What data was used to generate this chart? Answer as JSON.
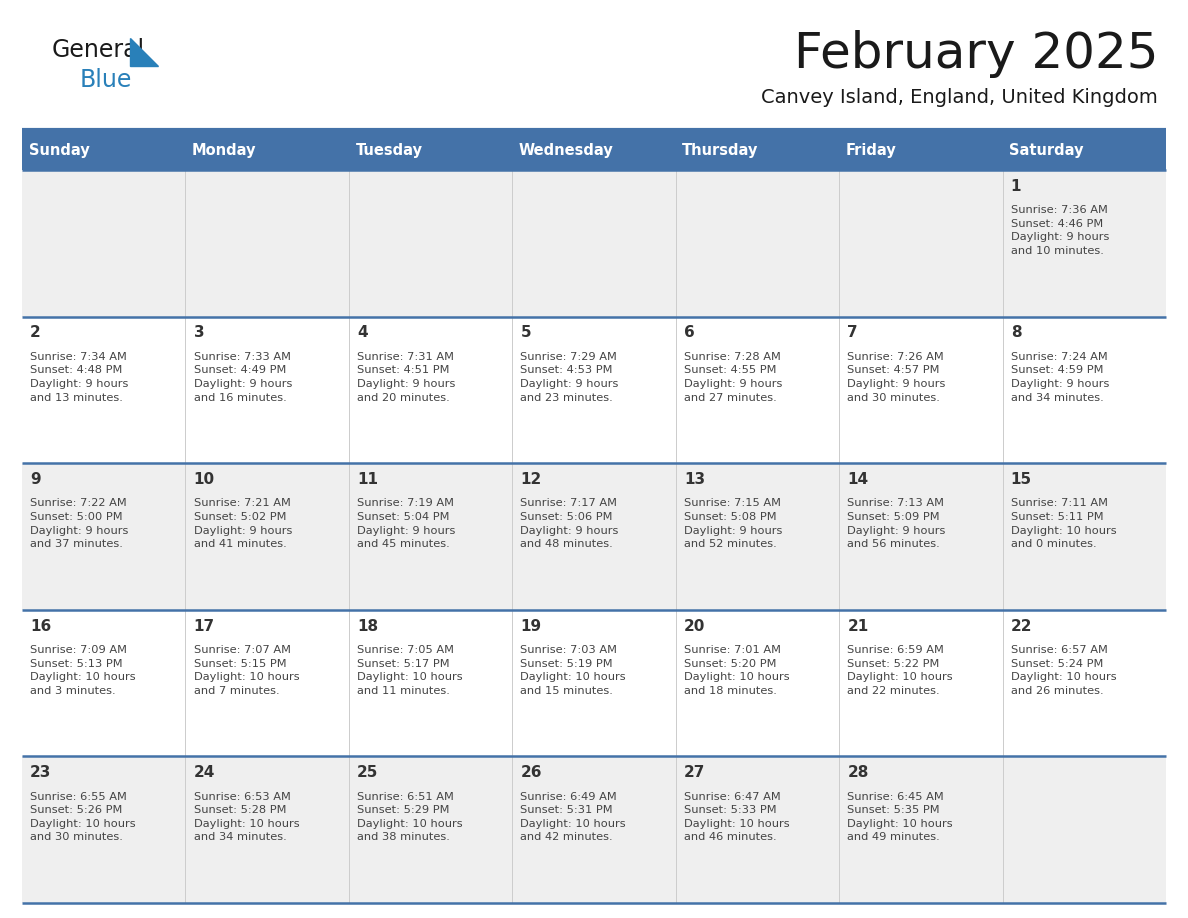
{
  "title": "February 2025",
  "subtitle": "Canvey Island, England, United Kingdom",
  "days_of_week": [
    "Sunday",
    "Monday",
    "Tuesday",
    "Wednesday",
    "Thursday",
    "Friday",
    "Saturday"
  ],
  "header_bg": "#4472a8",
  "header_text": "#ffffff",
  "cell_bg_odd": "#efefef",
  "cell_bg_even": "#ffffff",
  "divider_color": "#4472a8",
  "text_color": "#333333",
  "day_number_color": "#333333",
  "info_text_color": "#444444",
  "calendar_data": [
    [
      null,
      null,
      null,
      null,
      null,
      null,
      {
        "day": 1,
        "sunrise": "7:36 AM",
        "sunset": "4:46 PM",
        "daylight": "9 hours and 10 minutes"
      }
    ],
    [
      {
        "day": 2,
        "sunrise": "7:34 AM",
        "sunset": "4:48 PM",
        "daylight": "9 hours and 13 minutes"
      },
      {
        "day": 3,
        "sunrise": "7:33 AM",
        "sunset": "4:49 PM",
        "daylight": "9 hours and 16 minutes"
      },
      {
        "day": 4,
        "sunrise": "7:31 AM",
        "sunset": "4:51 PM",
        "daylight": "9 hours and 20 minutes"
      },
      {
        "day": 5,
        "sunrise": "7:29 AM",
        "sunset": "4:53 PM",
        "daylight": "9 hours and 23 minutes"
      },
      {
        "day": 6,
        "sunrise": "7:28 AM",
        "sunset": "4:55 PM",
        "daylight": "9 hours and 27 minutes"
      },
      {
        "day": 7,
        "sunrise": "7:26 AM",
        "sunset": "4:57 PM",
        "daylight": "9 hours and 30 minutes"
      },
      {
        "day": 8,
        "sunrise": "7:24 AM",
        "sunset": "4:59 PM",
        "daylight": "9 hours and 34 minutes"
      }
    ],
    [
      {
        "day": 9,
        "sunrise": "7:22 AM",
        "sunset": "5:00 PM",
        "daylight": "9 hours and 37 minutes"
      },
      {
        "day": 10,
        "sunrise": "7:21 AM",
        "sunset": "5:02 PM",
        "daylight": "9 hours and 41 minutes"
      },
      {
        "day": 11,
        "sunrise": "7:19 AM",
        "sunset": "5:04 PM",
        "daylight": "9 hours and 45 minutes"
      },
      {
        "day": 12,
        "sunrise": "7:17 AM",
        "sunset": "5:06 PM",
        "daylight": "9 hours and 48 minutes"
      },
      {
        "day": 13,
        "sunrise": "7:15 AM",
        "sunset": "5:08 PM",
        "daylight": "9 hours and 52 minutes"
      },
      {
        "day": 14,
        "sunrise": "7:13 AM",
        "sunset": "5:09 PM",
        "daylight": "9 hours and 56 minutes"
      },
      {
        "day": 15,
        "sunrise": "7:11 AM",
        "sunset": "5:11 PM",
        "daylight": "10 hours and 0 minutes"
      }
    ],
    [
      {
        "day": 16,
        "sunrise": "7:09 AM",
        "sunset": "5:13 PM",
        "daylight": "10 hours and 3 minutes"
      },
      {
        "day": 17,
        "sunrise": "7:07 AM",
        "sunset": "5:15 PM",
        "daylight": "10 hours and 7 minutes"
      },
      {
        "day": 18,
        "sunrise": "7:05 AM",
        "sunset": "5:17 PM",
        "daylight": "10 hours and 11 minutes"
      },
      {
        "day": 19,
        "sunrise": "7:03 AM",
        "sunset": "5:19 PM",
        "daylight": "10 hours and 15 minutes"
      },
      {
        "day": 20,
        "sunrise": "7:01 AM",
        "sunset": "5:20 PM",
        "daylight": "10 hours and 18 minutes"
      },
      {
        "day": 21,
        "sunrise": "6:59 AM",
        "sunset": "5:22 PM",
        "daylight": "10 hours and 22 minutes"
      },
      {
        "day": 22,
        "sunrise": "6:57 AM",
        "sunset": "5:24 PM",
        "daylight": "10 hours and 26 minutes"
      }
    ],
    [
      {
        "day": 23,
        "sunrise": "6:55 AM",
        "sunset": "5:26 PM",
        "daylight": "10 hours and 30 minutes"
      },
      {
        "day": 24,
        "sunrise": "6:53 AM",
        "sunset": "5:28 PM",
        "daylight": "10 hours and 34 minutes"
      },
      {
        "day": 25,
        "sunrise": "6:51 AM",
        "sunset": "5:29 PM",
        "daylight": "10 hours and 38 minutes"
      },
      {
        "day": 26,
        "sunrise": "6:49 AM",
        "sunset": "5:31 PM",
        "daylight": "10 hours and 42 minutes"
      },
      {
        "day": 27,
        "sunrise": "6:47 AM",
        "sunset": "5:33 PM",
        "daylight": "10 hours and 46 minutes"
      },
      {
        "day": 28,
        "sunrise": "6:45 AM",
        "sunset": "5:35 PM",
        "daylight": "10 hours and 49 minutes"
      },
      null
    ]
  ],
  "logo_color_general": "#1a1a1a",
  "logo_color_blue": "#2980b9",
  "logo_triangle_color": "#2980b9"
}
